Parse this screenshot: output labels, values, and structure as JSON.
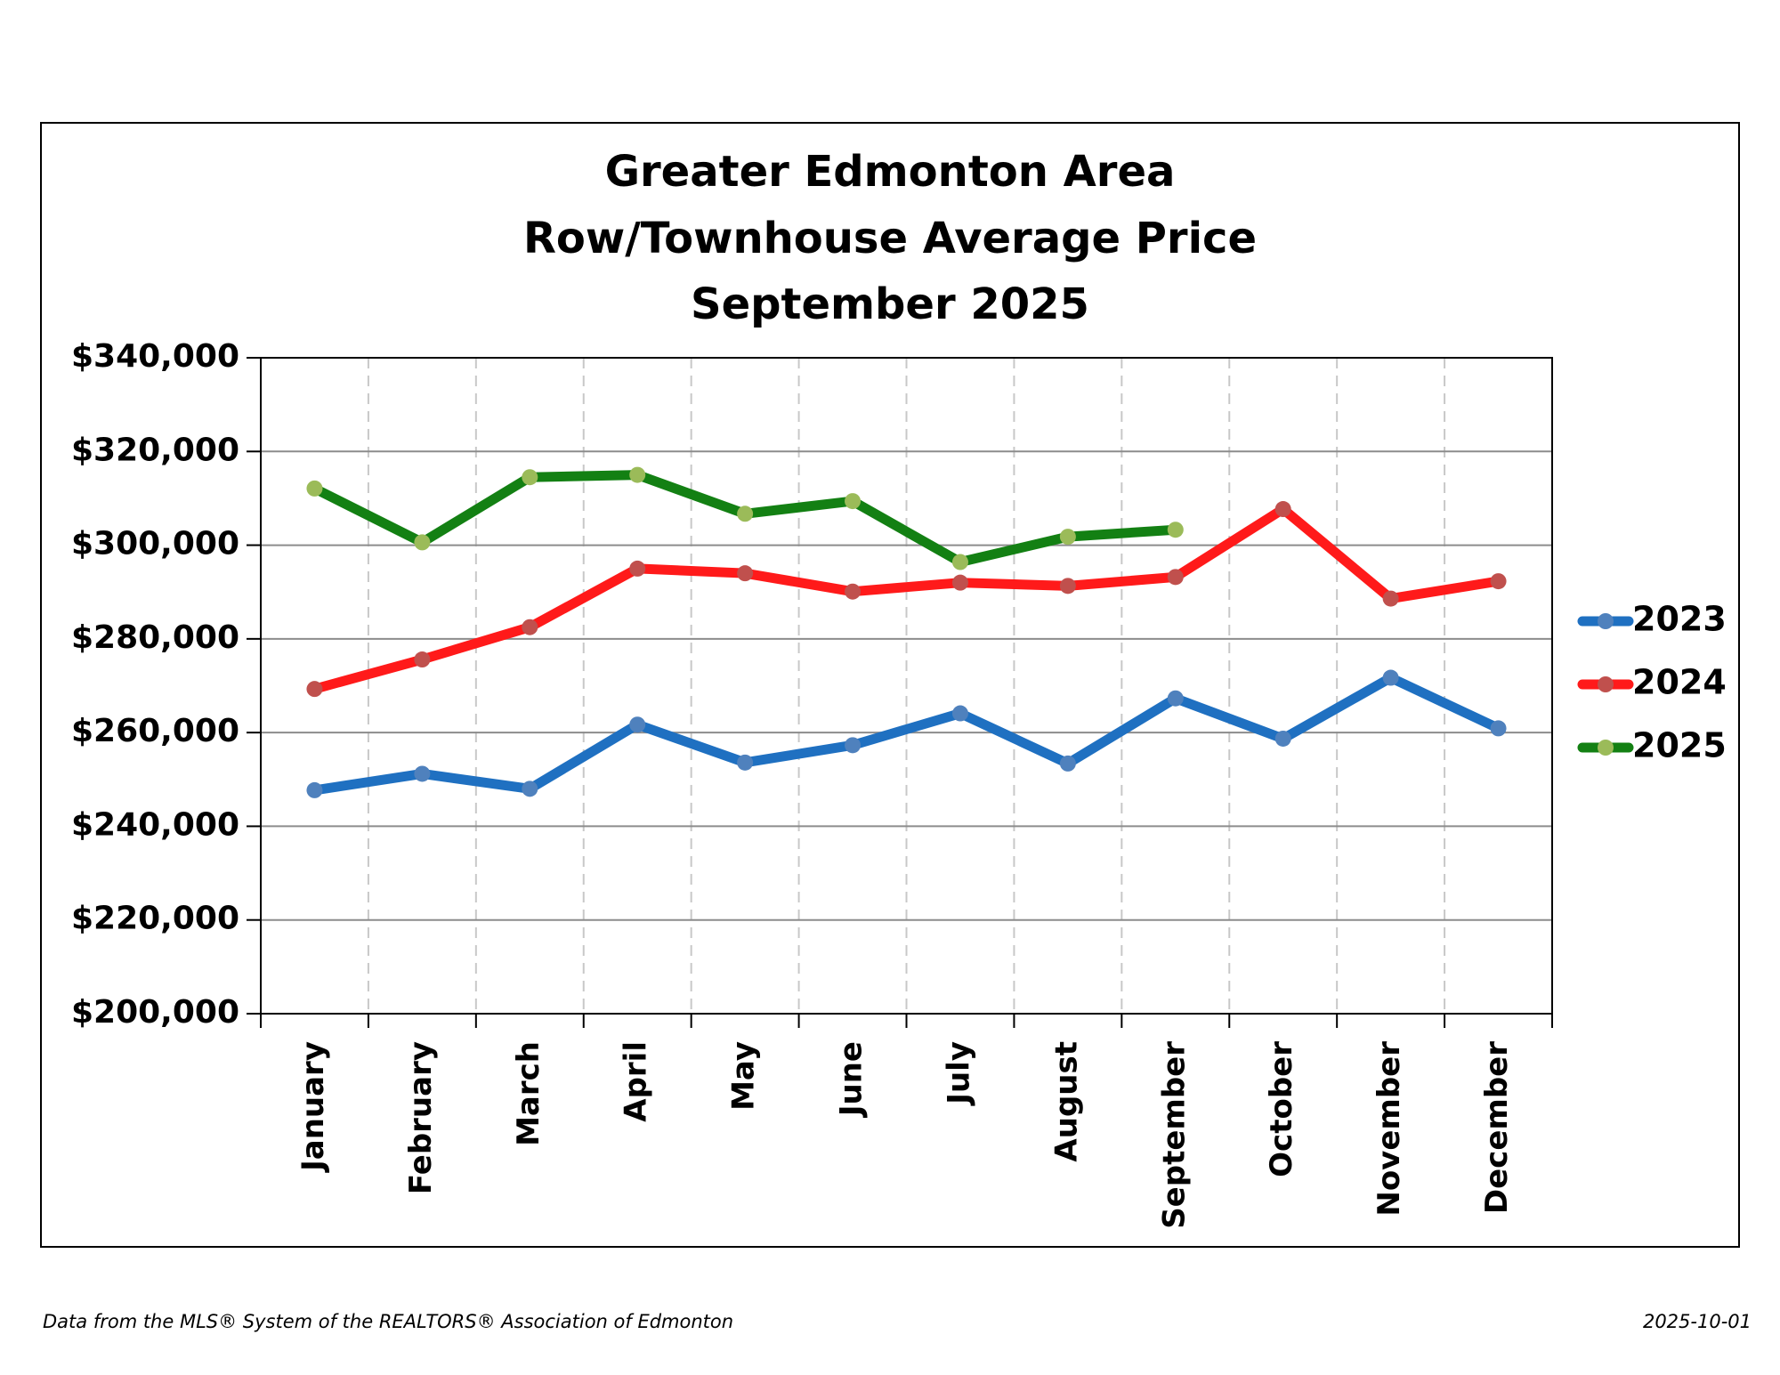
{
  "chart_data": {
    "type": "line",
    "title": [
      "Greater Edmonton Area",
      "Row/Townhouse Average Price",
      "September 2025"
    ],
    "categories": [
      "January",
      "February",
      "March",
      "April",
      "May",
      "June",
      "July",
      "August",
      "September",
      "October",
      "November",
      "December"
    ],
    "series": [
      {
        "name": "2023",
        "color": "#1f70c1",
        "marker_color": "#4f81bd",
        "values": [
          247700,
          251200,
          248000,
          261700,
          253600,
          257300,
          264100,
          253400,
          267300,
          258700,
          271700,
          260900
        ]
      },
      {
        "name": "2024",
        "color": "#ff1a1a",
        "marker_color": "#c0504d",
        "values": [
          269300,
          275600,
          282500,
          295000,
          294000,
          290100,
          292000,
          291300,
          293200,
          307700,
          288600,
          292300
        ]
      },
      {
        "name": "2025",
        "color": "#138013",
        "marker_color": "#9bbb59",
        "values": [
          312100,
          300600,
          314500,
          315000,
          306700,
          309400,
          296400,
          301800,
          303300,
          null,
          null,
          null
        ]
      }
    ],
    "ylim": [
      200000,
      340000
    ],
    "yticks": [
      {
        "value": 200000,
        "label": "$200,000"
      },
      {
        "value": 220000,
        "label": "$220,000"
      },
      {
        "value": 240000,
        "label": "$240,000"
      },
      {
        "value": 260000,
        "label": "$260,000"
      },
      {
        "value": 280000,
        "label": "$280,000"
      },
      {
        "value": 300000,
        "label": "$300,000"
      },
      {
        "value": 320000,
        "label": "$320,000"
      },
      {
        "value": 340000,
        "label": "$340,000"
      }
    ],
    "grid": true,
    "legend": "right",
    "source": "Data from the MLS® System of the REALTORS® Association of Edmonton",
    "date": "2025-10-01"
  }
}
